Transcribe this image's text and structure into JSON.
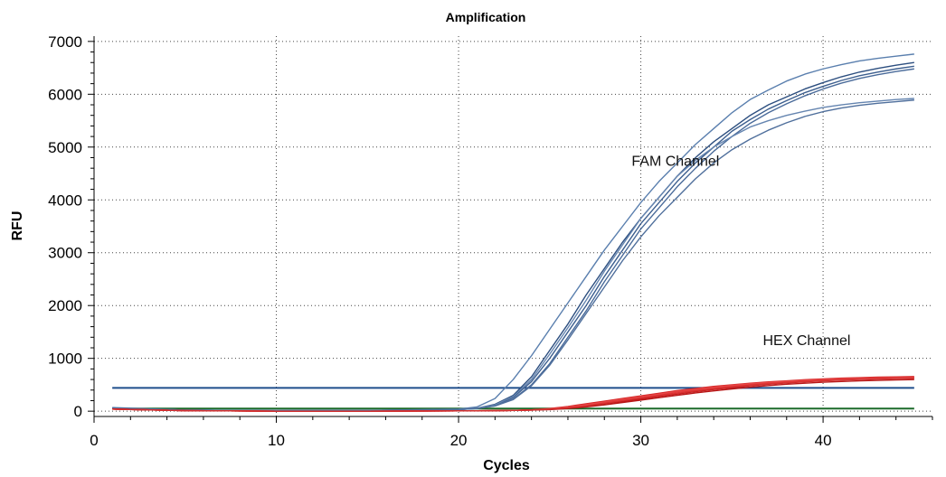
{
  "chart_data": {
    "type": "line",
    "title": "Amplification",
    "xlabel": "Cycles",
    "ylabel": "RFU",
    "xlim": [
      0,
      46
    ],
    "ylim": [
      -100,
      7100
    ],
    "xticks": [
      0,
      10,
      20,
      30,
      40
    ],
    "yticks": [
      0,
      1000,
      2000,
      3000,
      4000,
      5000,
      6000,
      7000
    ],
    "grid": true,
    "legend": "none",
    "annotations": [
      {
        "text": "FAM Channel",
        "x": 31.9,
        "y": 4650
      },
      {
        "text": "HEX Channel",
        "x": 39.1,
        "y": 1250
      }
    ],
    "thresholds": [
      {
        "name": "FAM threshold",
        "y": 440,
        "color": "#1f4e8c"
      },
      {
        "name": "HEX threshold",
        "y": 50,
        "color": "#1c6b2a"
      }
    ],
    "x": [
      1,
      5,
      10,
      15,
      20,
      21,
      22,
      23,
      24,
      25,
      26,
      27,
      28,
      29,
      30,
      31,
      32,
      33,
      34,
      35,
      36,
      37,
      38,
      39,
      40,
      41,
      42,
      43,
      44,
      45
    ],
    "series": [
      {
        "color": "#5a7fae",
        "values": [
          70,
          20,
          10,
          15,
          40,
          80,
          240,
          600,
          1050,
          1550,
          2050,
          2550,
          3050,
          3500,
          3950,
          4350,
          4700,
          5050,
          5350,
          5650,
          5900,
          6080,
          6250,
          6380,
          6480,
          6560,
          6630,
          6680,
          6720,
          6760
        ]
      },
      {
        "color": "#2c4e7f",
        "values": [
          60,
          20,
          10,
          15,
          30,
          55,
          130,
          300,
          650,
          1150,
          1650,
          2200,
          2700,
          3200,
          3650,
          4050,
          4450,
          4800,
          5100,
          5350,
          5600,
          5800,
          5950,
          6100,
          6220,
          6330,
          6420,
          6490,
          6550,
          6600
        ]
      },
      {
        "color": "#3d5f8f",
        "values": [
          60,
          20,
          10,
          15,
          30,
          50,
          110,
          260,
          560,
          1000,
          1500,
          2000,
          2550,
          3050,
          3550,
          3950,
          4350,
          4700,
          5000,
          5300,
          5520,
          5720,
          5880,
          6030,
          6150,
          6260,
          6350,
          6420,
          6480,
          6530
        ]
      },
      {
        "color": "#4a6b9a",
        "values": [
          60,
          20,
          10,
          15,
          30,
          50,
          100,
          230,
          500,
          900,
          1400,
          1900,
          2450,
          2950,
          3450,
          3850,
          4250,
          4600,
          4920,
          5200,
          5450,
          5650,
          5820,
          5970,
          6100,
          6210,
          6300,
          6370,
          6430,
          6480
        ]
      },
      {
        "color": "#6585b0",
        "values": [
          60,
          20,
          10,
          15,
          30,
          55,
          120,
          280,
          600,
          1080,
          1580,
          2100,
          2650,
          3150,
          3650,
          4050,
          4450,
          4750,
          5000,
          5200,
          5380,
          5500,
          5600,
          5680,
          5750,
          5800,
          5840,
          5870,
          5900,
          5920
        ]
      },
      {
        "color": "#4f6f9c",
        "values": [
          60,
          20,
          10,
          15,
          30,
          50,
          100,
          220,
          480,
          870,
          1350,
          1850,
          2350,
          2850,
          3300,
          3700,
          4050,
          4400,
          4700,
          4950,
          5150,
          5320,
          5460,
          5580,
          5670,
          5740,
          5790,
          5830,
          5860,
          5890
        ]
      },
      {
        "color": "#d42424",
        "values": [
          40,
          10,
          0,
          0,
          5,
          8,
          10,
          15,
          25,
          50,
          90,
          140,
          190,
          240,
          290,
          340,
          390,
          430,
          470,
          500,
          530,
          555,
          575,
          595,
          610,
          625,
          635,
          645,
          650,
          655
        ]
      },
      {
        "color": "#e03535",
        "values": [
          40,
          10,
          0,
          0,
          5,
          8,
          10,
          15,
          25,
          40,
          70,
          110,
          160,
          210,
          260,
          310,
          360,
          400,
          440,
          475,
          505,
          530,
          555,
          575,
          590,
          605,
          615,
          625,
          632,
          638
        ]
      },
      {
        "color": "#c41a1a",
        "values": [
          40,
          10,
          0,
          0,
          5,
          8,
          10,
          15,
          20,
          35,
          60,
          95,
          140,
          185,
          230,
          280,
          325,
          370,
          410,
          445,
          480,
          510,
          535,
          555,
          575,
          590,
          600,
          610,
          618,
          624
        ]
      },
      {
        "color": "#e64545",
        "values": [
          40,
          10,
          0,
          0,
          5,
          8,
          10,
          15,
          25,
          45,
          80,
          125,
          175,
          225,
          275,
          325,
          375,
          415,
          455,
          490,
          520,
          545,
          565,
          585,
          600,
          612,
          622,
          630,
          636,
          640
        ]
      },
      {
        "color": "#b71616",
        "values": [
          40,
          10,
          0,
          0,
          5,
          8,
          10,
          15,
          20,
          30,
          50,
          80,
          120,
          165,
          210,
          255,
          300,
          345,
          385,
          420,
          455,
          485,
          510,
          530,
          548,
          562,
          574,
          584,
          592,
          598
        ]
      },
      {
        "color": "#d63030",
        "values": [
          40,
          10,
          0,
          0,
          5,
          8,
          10,
          15,
          22,
          38,
          65,
          100,
          150,
          200,
          250,
          295,
          340,
          385,
          425,
          460,
          490,
          515,
          540,
          560,
          578,
          592,
          604,
          614,
          622,
          628
        ]
      }
    ]
  }
}
